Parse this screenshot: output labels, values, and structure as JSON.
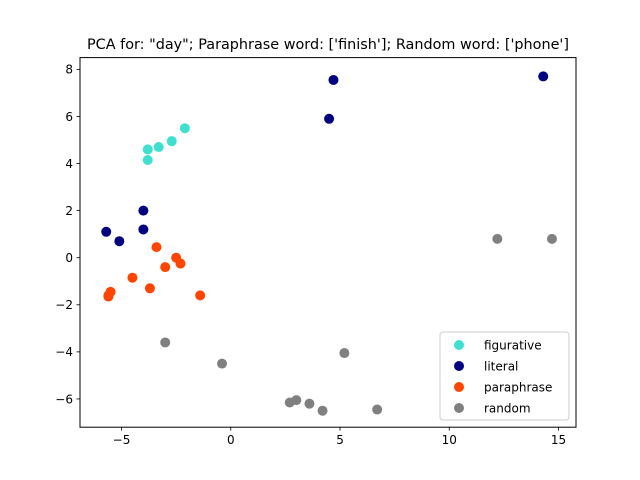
{
  "chart_data": {
    "type": "scatter",
    "title": "PCA for: \"day\"; Paraphrase word: ['finish']; Random word: ['phone']",
    "xlabel": "",
    "ylabel": "",
    "xlim": [
      -6.9,
      15.8
    ],
    "ylim": [
      -7.2,
      8.5
    ],
    "xticks": [
      -5,
      0,
      5,
      10,
      15
    ],
    "yticks": [
      -6,
      -4,
      -2,
      0,
      2,
      4,
      6,
      8
    ],
    "xtick_labels": [
      "−5",
      "0",
      "5",
      "10",
      "15"
    ],
    "ytick_labels": [
      "−6",
      "−4",
      "−2",
      "0",
      "2",
      "4",
      "6",
      "8"
    ],
    "grid": false,
    "legend_position": "lower-right",
    "series": [
      {
        "name": "figurative",
        "color": "#40e0d0",
        "points": [
          [
            -3.8,
            4.6
          ],
          [
            -3.8,
            4.15
          ],
          [
            -3.3,
            4.7
          ],
          [
            -2.7,
            4.95
          ],
          [
            -2.1,
            5.5
          ]
        ]
      },
      {
        "name": "literal",
        "color": "#000080",
        "points": [
          [
            -5.7,
            1.1
          ],
          [
            -5.1,
            0.7
          ],
          [
            -4.0,
            2.0
          ],
          [
            -4.0,
            1.2
          ],
          [
            4.5,
            5.9
          ],
          [
            4.7,
            7.55
          ],
          [
            14.3,
            7.7
          ]
        ]
      },
      {
        "name": "paraphrase",
        "color": "#ff4500",
        "points": [
          [
            -5.6,
            -1.65
          ],
          [
            -5.6,
            -1.6
          ],
          [
            -5.5,
            -1.45
          ],
          [
            -4.5,
            -0.85
          ],
          [
            -3.7,
            -1.3
          ],
          [
            -3.4,
            0.45
          ],
          [
            -3.0,
            -0.4
          ],
          [
            -2.5,
            0.0
          ],
          [
            -2.3,
            -0.25
          ],
          [
            -1.4,
            -1.6
          ]
        ]
      },
      {
        "name": "random",
        "color": "#808080",
        "points": [
          [
            -3.0,
            -3.6
          ],
          [
            -0.4,
            -4.5
          ],
          [
            2.7,
            -6.15
          ],
          [
            3.0,
            -6.05
          ],
          [
            3.6,
            -6.2
          ],
          [
            4.2,
            -6.5
          ],
          [
            5.2,
            -4.05
          ],
          [
            6.7,
            -6.45
          ],
          [
            12.2,
            0.8
          ],
          [
            14.7,
            0.8
          ]
        ]
      }
    ]
  }
}
